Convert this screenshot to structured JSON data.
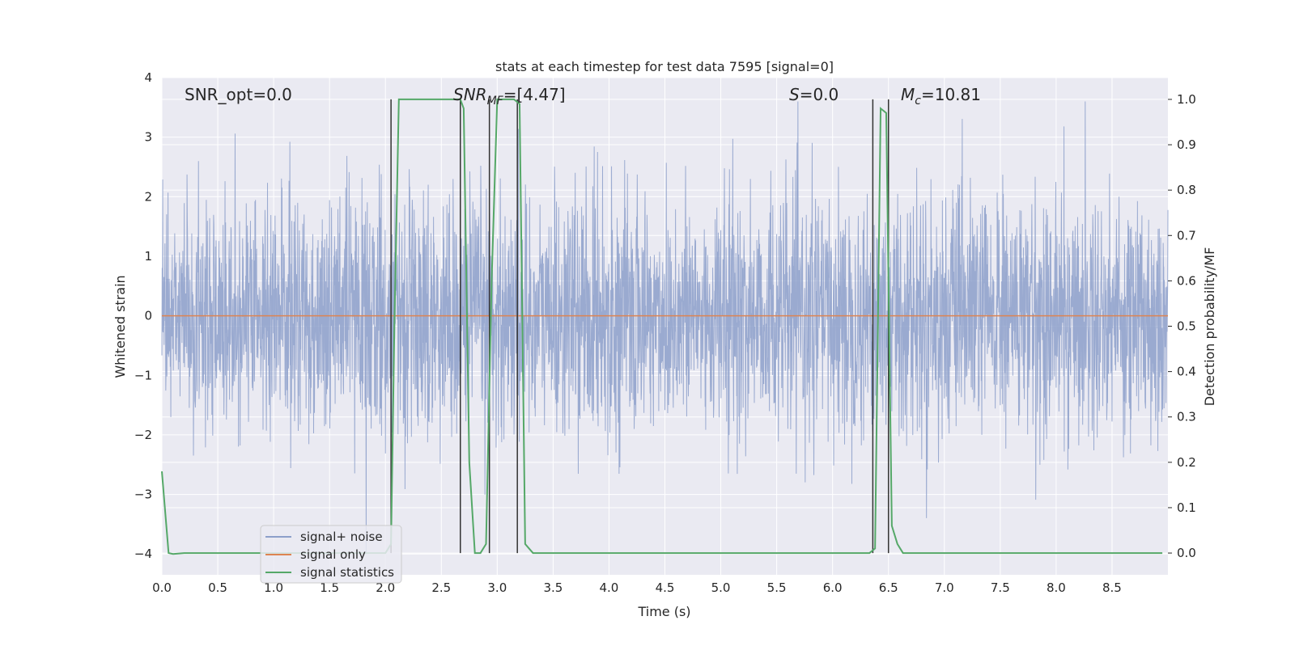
{
  "chart_data": {
    "type": "line",
    "title": "stats at each timestep for test data 7595 [signal=0]",
    "xlabel": "Time (s)",
    "ylabel_left": "Whitened strain",
    "ylabel_right": "Detection probability/MF",
    "xlim": [
      0.0,
      9.0
    ],
    "ylim_left": [
      -4.35,
      4.0
    ],
    "ylim_right": [
      -0.048,
      1.048
    ],
    "x_ticks": [
      "0.0",
      "0.5",
      "1.0",
      "1.5",
      "2.0",
      "2.5",
      "3.0",
      "3.5",
      "4.0",
      "4.5",
      "5.0",
      "5.5",
      "6.0",
      "6.5",
      "7.0",
      "7.5",
      "8.0",
      "8.5"
    ],
    "y_ticks_left": [
      "4",
      "3",
      "2",
      "1",
      "0",
      "−1",
      "−2",
      "−3",
      "−4"
    ],
    "y_ticks_right": [
      "1.0",
      "0.9",
      "0.8",
      "0.7",
      "0.6",
      "0.5",
      "0.4",
      "0.3",
      "0.2",
      "0.1",
      "0.0"
    ],
    "grid": true,
    "legend_position": "lower-left",
    "annotations": {
      "snr_opt": "SNR_opt=0.0",
      "snr_mf_base": "SNR",
      "snr_mf_sub": "MF",
      "snr_mf_value": "=[4.47]",
      "s_symbol": "S",
      "s_value": "=0.0",
      "mc_symbol": "M",
      "mc_sub": "c",
      "mc_value": "=10.81"
    },
    "series": [
      {
        "name": "signal+ noise",
        "color": "#8c9fca",
        "axis": "left",
        "t_range": [
          0.0,
          9.0
        ],
        "amplitude_std": 1.0,
        "note_range_observed": [
          -4.0,
          3.6
        ]
      },
      {
        "name": "signal only",
        "color": "#dd8452",
        "axis": "left",
        "x": [
          0.0,
          9.0
        ],
        "y": [
          0.0,
          0.0
        ]
      },
      {
        "name": "signal statistics",
        "color": "#55a868",
        "axis": "right",
        "x": [
          0.0,
          0.06,
          0.1,
          0.2,
          2.0,
          2.05,
          2.08,
          2.12,
          2.67,
          2.7,
          2.75,
          2.8,
          2.85,
          2.9,
          2.95,
          3.0,
          3.05,
          3.15,
          3.2,
          3.25,
          3.32,
          6.33,
          6.38,
          6.43,
          6.48,
          6.53,
          6.58,
          6.63,
          8.95
        ],
        "y": [
          0.18,
          0.0,
          -0.002,
          0.0,
          0.0,
          0.02,
          0.5,
          1.0,
          1.0,
          0.98,
          0.2,
          0.0,
          0.0,
          0.02,
          0.6,
          1.0,
          1.0,
          1.0,
          0.99,
          0.02,
          0.0,
          0.0,
          0.01,
          0.98,
          0.97,
          0.06,
          0.02,
          0.0,
          0.0
        ]
      }
    ],
    "vertical_markers": {
      "color": "#333333",
      "right_axis_top": 1.0,
      "right_axis_bottom": 0.0,
      "x": [
        2.05,
        2.67,
        2.93,
        3.18,
        6.36,
        6.5
      ]
    }
  }
}
